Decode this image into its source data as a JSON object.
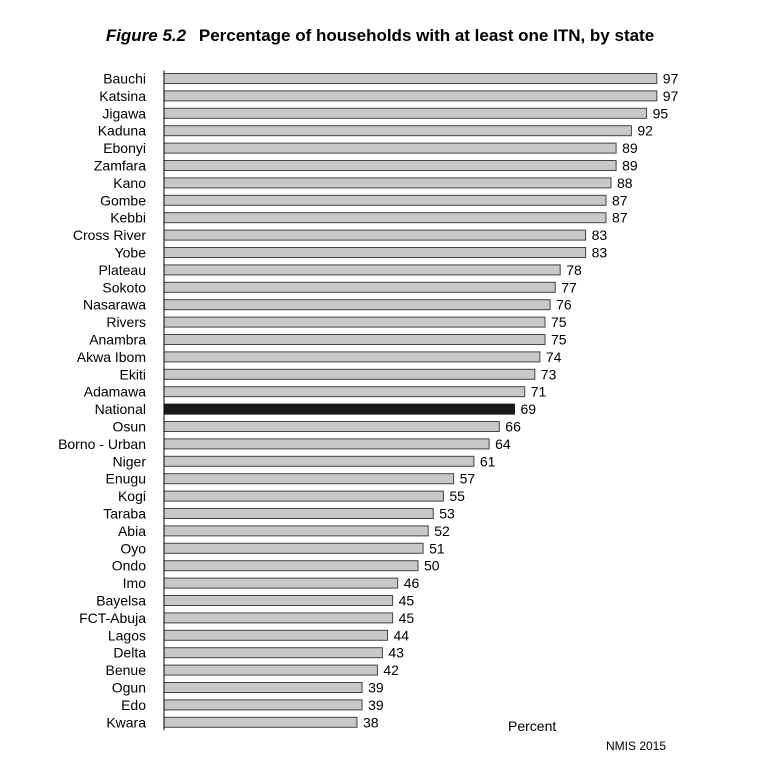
{
  "chart_data": {
    "type": "bar",
    "orientation": "horizontal",
    "figure_label": "Figure 5.2",
    "title": "Percentage of households with at least one ITN, by state",
    "xlabel": "Percent",
    "source": "NMIS 2015",
    "xlim": [
      0,
      100
    ],
    "grid": false,
    "highlight_category": "National",
    "colors": {
      "bar": "#c8c8c8",
      "highlight": "#1a1a1a",
      "stroke": "#444444"
    },
    "categories": [
      "Bauchi",
      "Katsina",
      "Jigawa",
      "Kaduna",
      "Ebonyi",
      "Zamfara",
      "Kano",
      "Gombe",
      "Kebbi",
      "Cross River",
      "Yobe",
      "Plateau",
      "Sokoto",
      "Nasarawa",
      "Rivers",
      "Anambra",
      "Akwa Ibom",
      "Ekiti",
      "Adamawa",
      "National",
      "Osun",
      "Borno - Urban",
      "Niger",
      "Enugu",
      "Kogi",
      "Taraba",
      "Abia",
      "Oyo",
      "Ondo",
      "Imo",
      "Bayelsa",
      "FCT-Abuja",
      "Lagos",
      "Delta",
      "Benue",
      "Ogun",
      "Edo",
      "Kwara"
    ],
    "values": [
      97,
      97,
      95,
      92,
      89,
      89,
      88,
      87,
      87,
      83,
      83,
      78,
      77,
      76,
      75,
      75,
      74,
      73,
      71,
      69,
      66,
      64,
      61,
      57,
      55,
      53,
      52,
      51,
      50,
      46,
      45,
      45,
      44,
      43,
      42,
      39,
      39,
      38
    ]
  }
}
